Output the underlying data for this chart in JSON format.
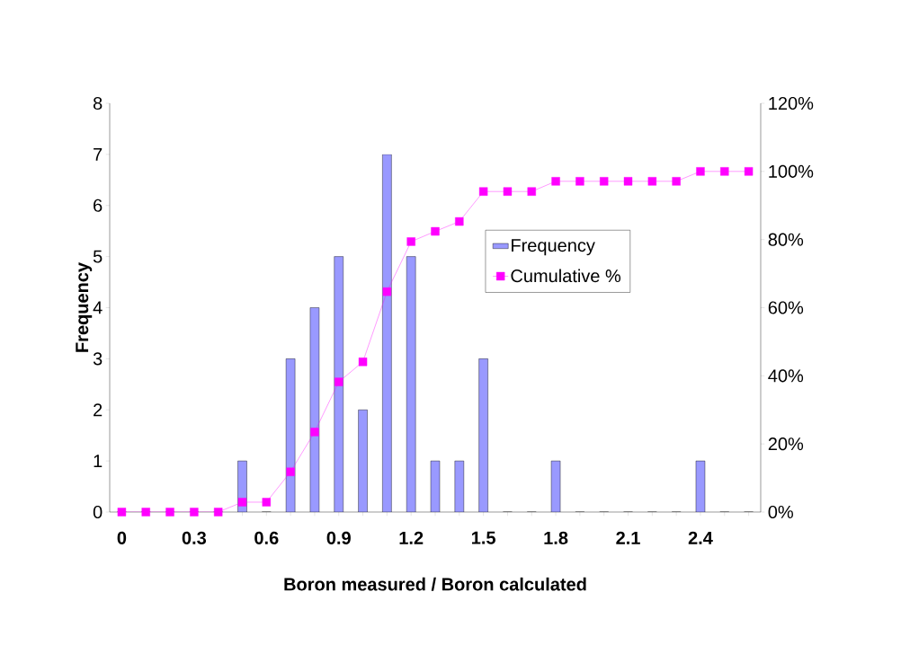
{
  "chart_data": {
    "type": "bar",
    "xlabel": "Boron measured / Boron calculated",
    "ylabel": "Frequency",
    "categories": [
      "0",
      null,
      null,
      "0.3",
      null,
      null,
      "0.6",
      null,
      null,
      "0.9",
      null,
      null,
      "1.2",
      null,
      null,
      "1.5",
      null,
      null,
      "1.8",
      null,
      null,
      "2.1",
      null,
      null,
      "2.4",
      null,
      null
    ],
    "ylim": [
      0,
      8
    ],
    "yticks": [
      0,
      1,
      2,
      3,
      4,
      5,
      6,
      7,
      8
    ],
    "y2lim": [
      0,
      120
    ],
    "y2ticks": [
      {
        "value": 0,
        "label": "0%"
      },
      {
        "value": 20,
        "label": "20%"
      },
      {
        "value": 40,
        "label": "40%"
      },
      {
        "value": 60,
        "label": "60%"
      },
      {
        "value": 80,
        "label": "80%"
      },
      {
        "value": 100,
        "label": "100%"
      },
      {
        "value": 120,
        "label": "120%"
      }
    ],
    "legend": "right",
    "series": [
      {
        "name": "Frequency",
        "color": "#9999ff",
        "values": [
          0,
          0,
          0,
          0,
          0,
          1,
          0,
          3,
          4,
          5,
          2,
          7,
          5,
          1,
          1,
          3,
          0,
          0,
          1,
          0,
          0,
          0,
          0,
          0,
          1,
          0,
          0
        ]
      },
      {
        "name": "Cumulative %",
        "type": "line",
        "axis": "y2",
        "color": "#ff00ff",
        "marker": "square",
        "values": [
          0,
          0,
          0,
          0,
          0,
          2.9,
          2.9,
          11.8,
          23.5,
          38.2,
          44.1,
          64.7,
          79.4,
          82.4,
          85.3,
          94.1,
          94.1,
          94.1,
          97.1,
          97.1,
          97.1,
          97.1,
          97.1,
          97.1,
          100,
          100,
          100
        ]
      }
    ]
  }
}
